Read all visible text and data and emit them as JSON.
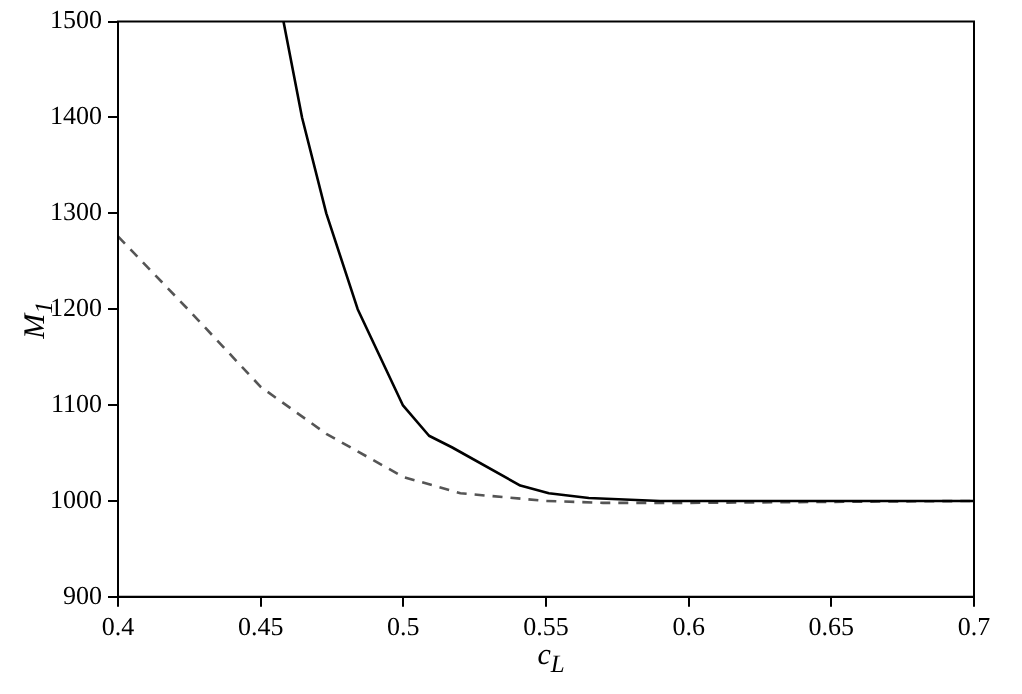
{
  "chart_data": {
    "type": "line",
    "xlabel": "c$_{L}$",
    "ylabel": "M$_{1}$",
    "xlim": [
      0.4,
      0.7
    ],
    "xticks": [
      {
        "value": 0.4,
        "label": "0.4"
      },
      {
        "value": 0.45,
        "label": "0.45"
      },
      {
        "value": 0.5,
        "label": "0.5"
      },
      {
        "value": 0.55,
        "label": "0.55"
      },
      {
        "value": 0.6,
        "label": "0.6"
      },
      {
        "value": 0.65,
        "label": "0.65"
      },
      {
        "value": 0.7,
        "label": "0.7"
      }
    ],
    "ylim": [
      900,
      1500
    ],
    "yticks": [
      900,
      1000,
      1100,
      1200,
      1300,
      1400,
      1500
    ],
    "grid": false,
    "legend": false,
    "marker": "none",
    "series": [
      {
        "color": "#000000",
        "line_style": "solid",
        "x": [
          0.458,
          0.4645,
          0.473,
          0.484,
          0.4998,
          0.509,
          0.517,
          0.541,
          0.551,
          0.565,
          0.59,
          0.62,
          0.65,
          0.7
        ],
        "values": [
          1500,
          1400,
          1300,
          1200,
          1100,
          1068,
          1056,
          1016,
          1008,
          1003,
          1000,
          1000,
          1000,
          1000
        ]
      },
      {
        "color": "#555555",
        "line_style": "dashed",
        "x": [
          0.4,
          0.4245,
          0.45,
          0.473,
          0.5,
          0.52,
          0.55,
          0.57,
          0.6,
          0.65,
          0.7
        ],
        "values": [
          1276,
          1200,
          1119,
          1070,
          1025,
          1008,
          1000,
          998,
          998,
          999,
          1000
        ]
      }
    ]
  }
}
